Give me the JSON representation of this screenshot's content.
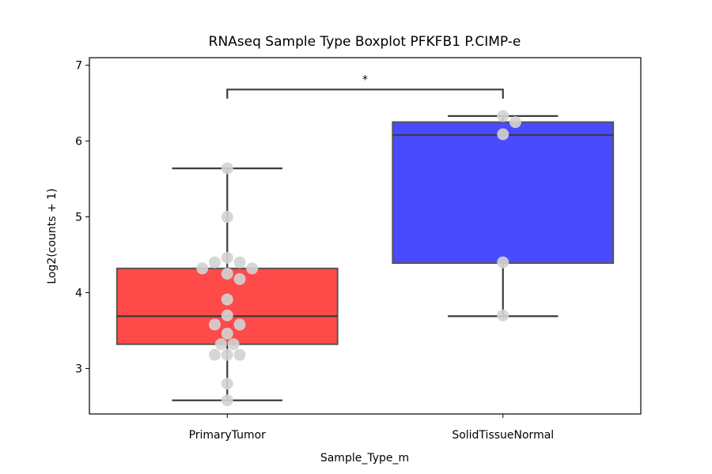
{
  "chart_data": {
    "type": "box",
    "title": "RNAseq Sample Type Boxplot PFKFB1 P.CIMP-e",
    "xlabel": "Sample_Type_m",
    "ylabel": "Log2(counts + 1)",
    "ylim": [
      2.4,
      7.1
    ],
    "yticks": [
      3,
      4,
      5,
      6,
      7
    ],
    "categories": [
      "PrimaryTumor",
      "SolidTissueNormal"
    ],
    "boxes": [
      {
        "category": "PrimaryTumor",
        "color": "#ff4a4a",
        "whisker_low": 2.58,
        "q1": 3.32,
        "median": 3.69,
        "q3": 4.32,
        "whisker_high": 5.64,
        "points": [
          5.64,
          5.0,
          4.46,
          4.4,
          4.4,
          4.32,
          4.32,
          4.25,
          4.18,
          3.91,
          3.7,
          3.58,
          3.58,
          3.46,
          3.32,
          3.32,
          3.18,
          3.18,
          3.18,
          2.8,
          2.58
        ]
      },
      {
        "category": "SolidTissueNormal",
        "color": "#4a4aff",
        "whisker_low": 3.69,
        "q1": 4.39,
        "median": 6.08,
        "q3": 6.25,
        "whisker_high": 6.33,
        "points": [
          6.33,
          6.25,
          6.09,
          4.4,
          3.7
        ]
      }
    ],
    "significance": {
      "pair": [
        "PrimaryTumor",
        "SolidTissueNormal"
      ],
      "label": "*"
    },
    "point_color": "#d3d3d3",
    "grid": false,
    "legend": "none"
  }
}
